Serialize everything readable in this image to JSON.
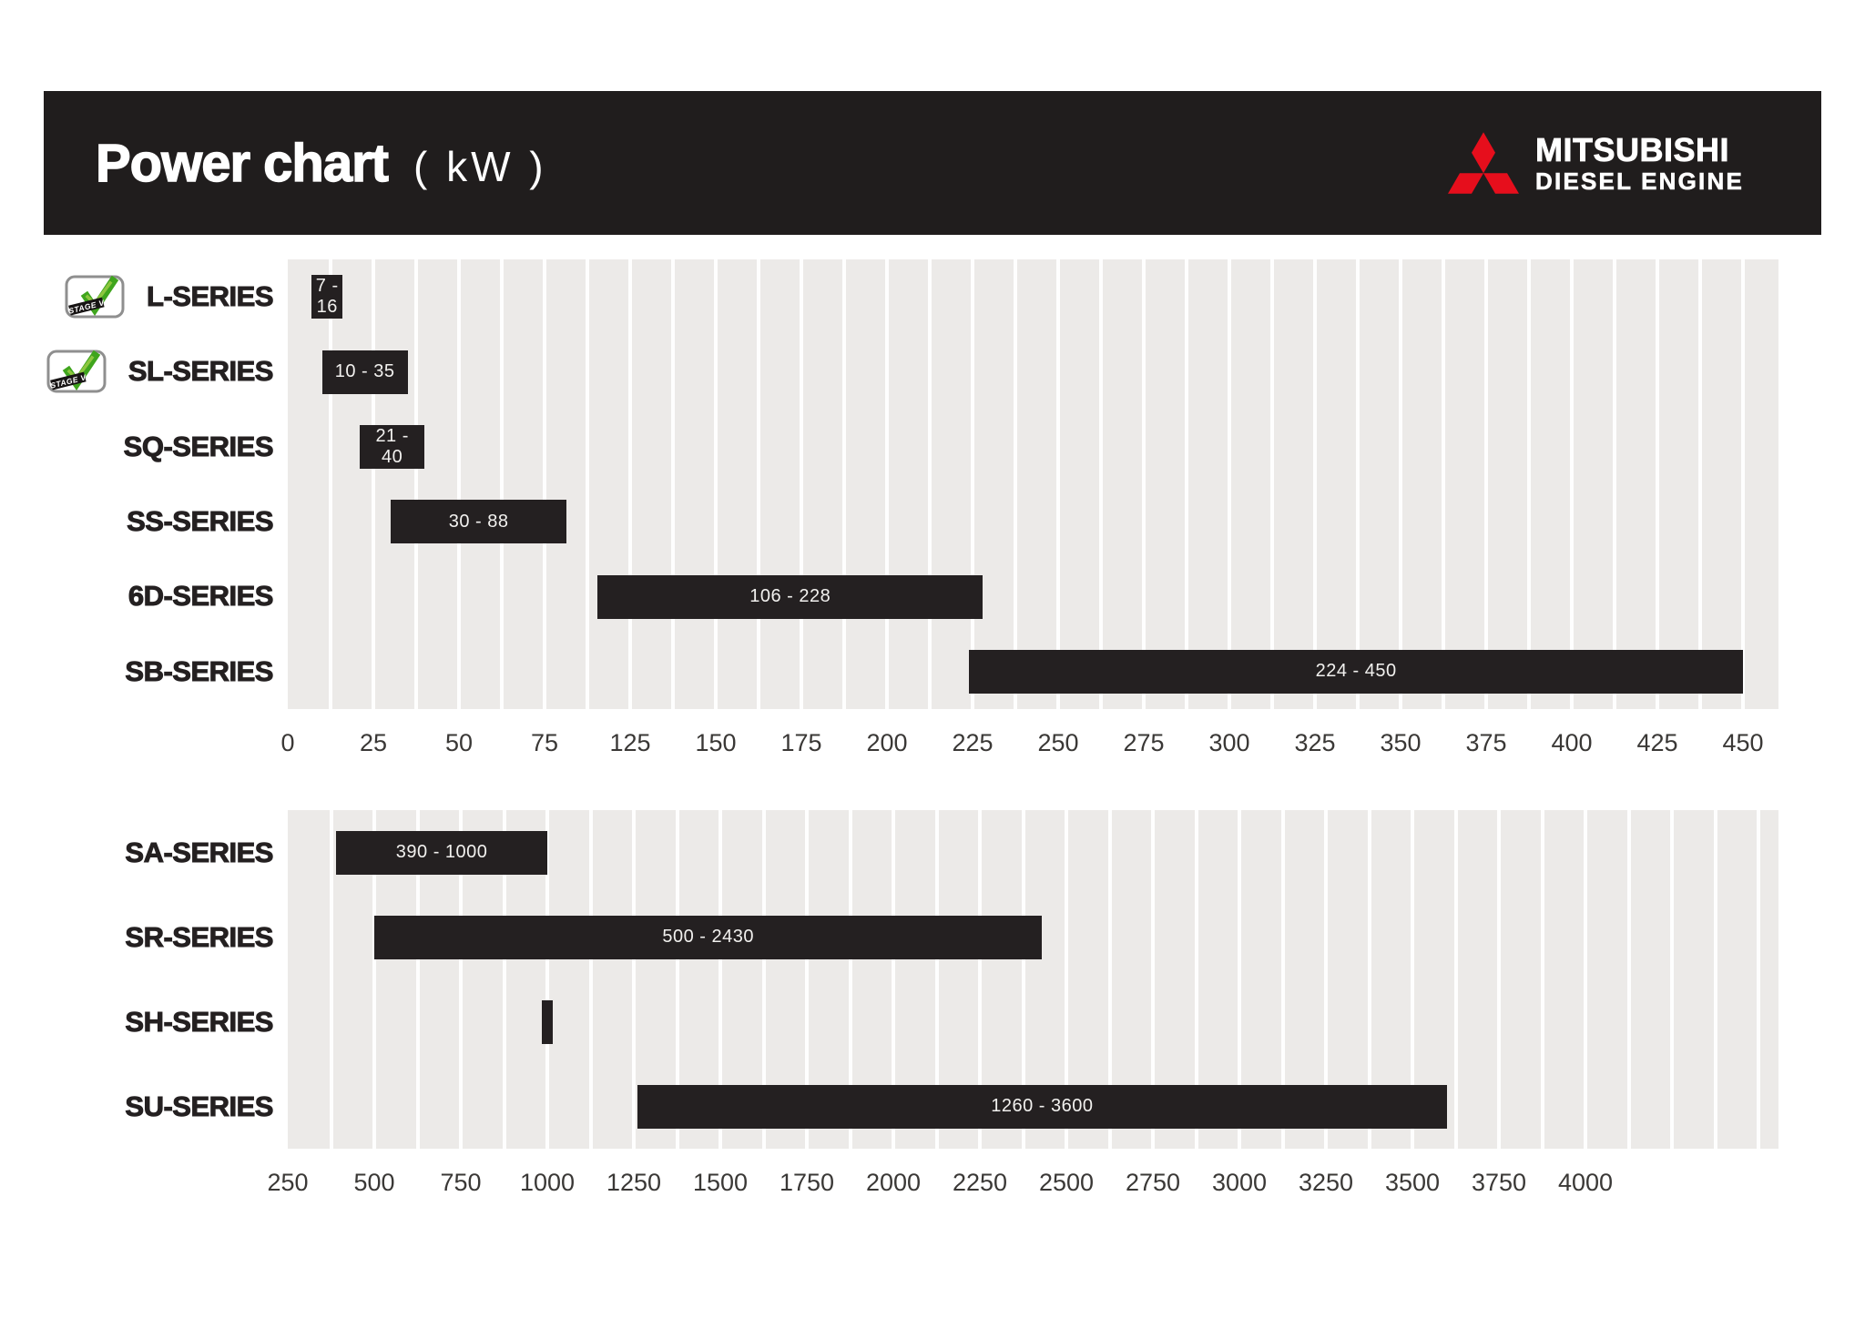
{
  "header": {
    "title": "Power chart",
    "unit": "( kW )",
    "brand": {
      "name": "MITSUBISHI",
      "sub": "DIESEL ENGINE"
    }
  },
  "stage_badge": {
    "label": "STAGE V"
  },
  "colors": {
    "header_bg": "#201d1d",
    "bar": "#242021",
    "plot_bg": "#eceae8",
    "gridline": "#ffffff",
    "brand_red": "#e60e1c",
    "badge_green": "#3fa51d",
    "axis_text": "#3a3836"
  },
  "chart_data": [
    {
      "type": "bar",
      "orientation": "horizontal-range",
      "title": "Power chart ( kW ) — low range",
      "unit": "kW",
      "grid": true,
      "axis_ticks": [
        0,
        25,
        50,
        75,
        125,
        150,
        175,
        200,
        225,
        250,
        275,
        300,
        325,
        350,
        375,
        400,
        425,
        450
      ],
      "rows": [
        {
          "series": "L-SERIES",
          "stage_v": true,
          "min": 7,
          "max": 16,
          "label": "7 - 16"
        },
        {
          "series": "SL-SERIES",
          "stage_v": true,
          "min": 10,
          "max": 35,
          "label": "10 - 35"
        },
        {
          "series": "SQ-SERIES",
          "stage_v": false,
          "min": 21,
          "max": 40,
          "label": "21 - 40"
        },
        {
          "series": "SS-SERIES",
          "stage_v": false,
          "min": 30,
          "max": 88,
          "label": "30 - 88"
        },
        {
          "series": "6D-SERIES",
          "stage_v": false,
          "min": 106,
          "max": 228,
          "label": "106 - 228"
        },
        {
          "series": "SB-SERIES",
          "stage_v": false,
          "min": 224,
          "max": 450,
          "label": "224 - 450"
        }
      ]
    },
    {
      "type": "bar",
      "orientation": "horizontal-range",
      "title": "Power chart ( kW ) — high range",
      "unit": "kW",
      "grid": true,
      "axis_ticks": [
        250,
        500,
        750,
        1000,
        1250,
        1500,
        1750,
        2000,
        2250,
        2500,
        2750,
        3000,
        3250,
        3500,
        3750,
        4000
      ],
      "rows": [
        {
          "series": "SA-SERIES",
          "stage_v": false,
          "min": 390,
          "max": 1000,
          "label": "390 - 1000"
        },
        {
          "series": "SR-SERIES",
          "stage_v": false,
          "min": 500,
          "max": 2430,
          "label": "500 - 2430"
        },
        {
          "series": "SH-SERIES",
          "stage_v": false,
          "min": 985,
          "max": 1015,
          "label": ""
        },
        {
          "series": "SU-SERIES",
          "stage_v": false,
          "min": 1260,
          "max": 3600,
          "label": "1260 - 3600"
        }
      ]
    }
  ]
}
